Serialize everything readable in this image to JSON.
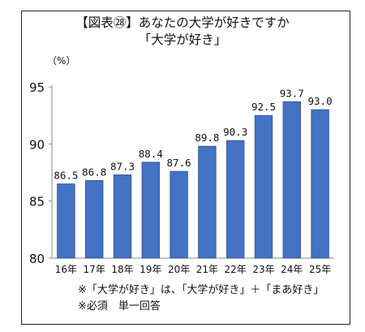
{
  "title_line1": "【図表㉘】あなたの大学が好きですか",
  "title_line2": "「大学が好き」",
  "unit_label": "（%）",
  "notes": [
    "※「大学が好き」は、「大学が好き」＋「まあ好き」",
    "※必須　単一回答"
  ],
  "chart_data": {
    "type": "bar",
    "title": "【図表㉘】あなたの大学が好きですか 「大学が好き」",
    "categories": [
      "16年",
      "17年",
      "18年",
      "19年",
      "20年",
      "21年",
      "22年",
      "23年",
      "24年",
      "25年"
    ],
    "values": [
      86.5,
      86.8,
      87.3,
      88.4,
      87.6,
      89.8,
      90.3,
      92.5,
      93.7,
      93.0
    ],
    "value_labels": [
      "86.5",
      "86.8",
      "87.3",
      "88.4",
      "87.6",
      "89.8",
      "90.3",
      "92.5",
      "93.7",
      "93.0"
    ],
    "ylim": [
      80,
      95
    ],
    "yticks": [
      80,
      85,
      90,
      95
    ],
    "ylabel": "（%）",
    "grid": false,
    "bar_color": "#4472C4",
    "bar_edge_color": "#2F528F"
  }
}
